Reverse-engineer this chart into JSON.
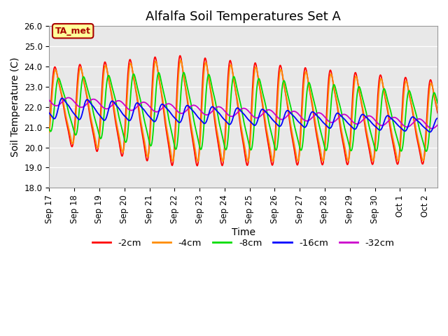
{
  "title": "Alfalfa Soil Temperatures Set A",
  "xlabel": "Time",
  "ylabel": "Soil Temperature (C)",
  "ylim": [
    18.0,
    26.0
  ],
  "yticks": [
    18.0,
    19.0,
    20.0,
    21.0,
    22.0,
    23.0,
    24.0,
    25.0,
    26.0
  ],
  "xtick_labels": [
    "Sep 17",
    "Sep 18",
    "Sep 19",
    "Sep 20",
    "Sep 21",
    "Sep 22",
    "Sep 23",
    "Sep 24",
    "Sep 25",
    "Sep 26",
    "Sep 27",
    "Sep 28",
    "Sep 29",
    "Sep 30",
    "Oct 1",
    "Oct 2"
  ],
  "colors": {
    "-2cm": "#ff0000",
    "-4cm": "#ff8c00",
    "-8cm": "#00dd00",
    "-16cm": "#0000ff",
    "-32cm": "#cc00cc"
  },
  "legend_label": "TA_met",
  "legend_box_color": "#ffff99",
  "legend_box_edge": "#cc0000",
  "bg_color": "#e8e8e8",
  "title_fontsize": 13,
  "axis_label_fontsize": 10,
  "tick_fontsize": 8.5
}
